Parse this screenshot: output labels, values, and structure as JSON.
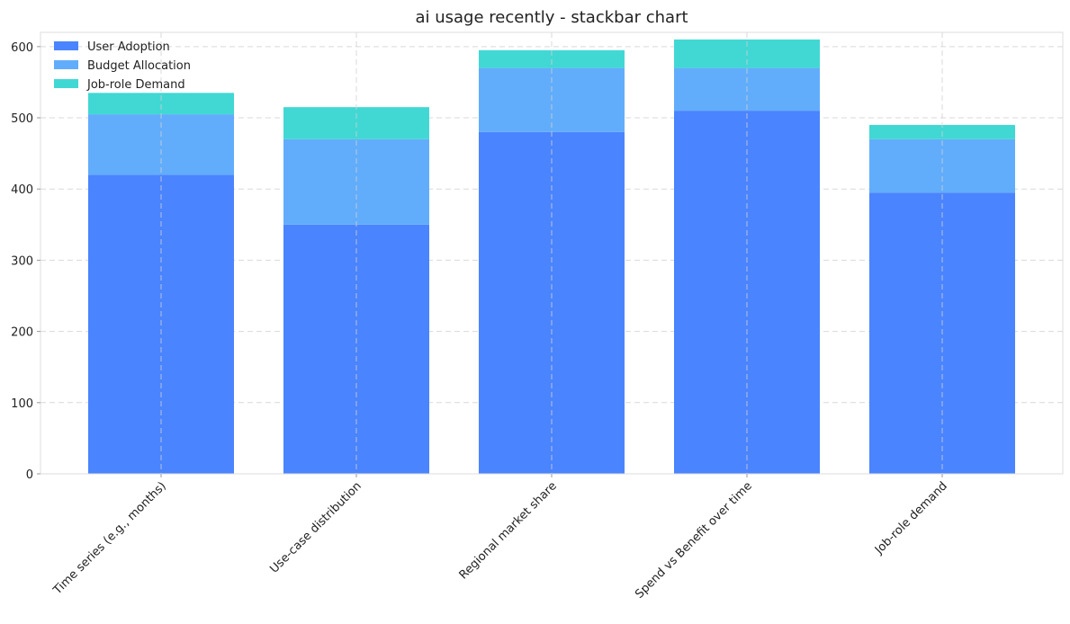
{
  "chart_data": {
    "type": "bar",
    "stacked": true,
    "title": "ai usage recently - stackbar chart",
    "xlabel": "",
    "ylabel": "",
    "categories": [
      "Time series (e.g., months)",
      "Use-case distribution",
      "Regional market share",
      "Spend vs Benefit over time",
      "Job-role demand"
    ],
    "series": [
      {
        "name": "User Adoption",
        "color": "#4a84ff",
        "values": [
          420,
          350,
          480,
          510,
          395
        ]
      },
      {
        "name": "Budget Allocation",
        "color": "#61adfb",
        "values": [
          85,
          120,
          90,
          60,
          75
        ]
      },
      {
        "name": "Job-role Demand",
        "color": "#41d8d4",
        "values": [
          30,
          45,
          25,
          40,
          20
        ]
      }
    ],
    "ylim": [
      0,
      620
    ],
    "yticks": [
      0,
      100,
      200,
      300,
      400,
      500,
      600
    ],
    "grid": true,
    "legend_position": "top-left"
  }
}
